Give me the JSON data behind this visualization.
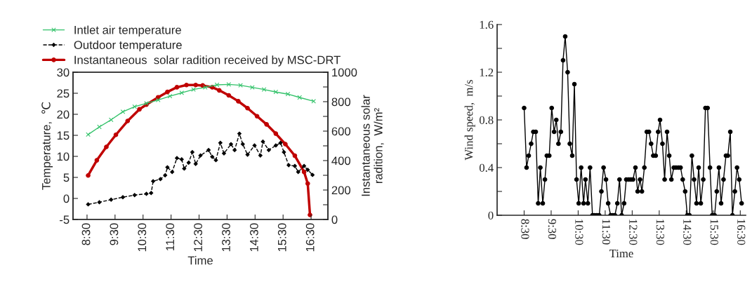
{
  "chart_data": [
    {
      "type": "line",
      "xlabel": "Time",
      "ylabel": "Temperature,  ℃",
      "y2label": "Instantaneous solar\nradition,  W/m²",
      "legend": "top left",
      "grid": false,
      "xlim": [
        8.0,
        17.1
      ],
      "xticks": [
        {
          "value": 8.5,
          "label": "8:30"
        },
        {
          "value": 9.5,
          "label": "9:30"
        },
        {
          "value": 10.5,
          "label": "10:30"
        },
        {
          "value": 11.5,
          "label": "11:30"
        },
        {
          "value": 12.5,
          "label": "12:30"
        },
        {
          "value": 13.5,
          "label": "13:30"
        },
        {
          "value": 14.5,
          "label": "14:30"
        },
        {
          "value": 15.5,
          "label": "15:30"
        },
        {
          "value": 16.5,
          "label": "16:30"
        }
      ],
      "ylim": [
        -5,
        30
      ],
      "yticks": [
        -5,
        0,
        5,
        10,
        15,
        20,
        25,
        30
      ],
      "y2lim": [
        0,
        1000
      ],
      "y2ticks": [
        0,
        {
          "value": 100,
          "label": null
        },
        200,
        {
          "value": 300,
          "label": null
        },
        400,
        {
          "value": 500,
          "label": null
        },
        600,
        {
          "value": 700,
          "label": null
        },
        800,
        {
          "value": 900,
          "label": null
        },
        1000
      ],
      "series": [
        {
          "name": "Intlet air temperature",
          "color": "#33c26a",
          "marker": "cross",
          "line_style": "solid",
          "x": [
            8.54,
            8.94,
            9.36,
            9.78,
            10.2,
            10.62,
            11.04,
            11.46,
            11.88,
            12.3,
            12.72,
            13.14,
            13.56,
            13.98,
            14.4,
            14.82,
            15.24,
            15.67,
            16.09,
            16.59
          ],
          "values": [
            15.2,
            17.0,
            18.7,
            20.6,
            21.8,
            22.6,
            23.4,
            24.3,
            25.1,
            25.9,
            26.4,
            27.0,
            27.1,
            26.9,
            26.4,
            25.9,
            25.3,
            24.8,
            24.0,
            23.1
          ]
        },
        {
          "name": "Outdoor temperature",
          "color": "#000000",
          "marker": "diamond",
          "line_style": "dashed",
          "x": [
            8.54,
            8.94,
            9.36,
            9.78,
            10.2,
            10.62,
            10.79,
            10.86,
            11.12,
            11.29,
            11.37,
            11.54,
            11.71,
            11.88,
            11.97,
            12.13,
            12.26,
            12.38,
            12.55,
            12.84,
            12.97,
            13.1,
            13.26,
            13.39,
            13.64,
            13.77,
            13.94,
            14.06,
            14.23,
            14.48,
            14.69,
            14.78,
            14.99,
            15.24,
            15.41,
            15.53,
            15.7,
            15.92,
            16.04,
            16.25,
            16.38,
            16.55
          ],
          "values": [
            -1.4,
            -0.9,
            -0.3,
            0.3,
            0.8,
            1.1,
            1.3,
            4.1,
            4.6,
            5.5,
            7.4,
            6.3,
            9.6,
            9.3,
            7.1,
            8.5,
            11.0,
            8.2,
            10.2,
            11.5,
            9.9,
            9.1,
            13.2,
            10.7,
            12.9,
            11.5,
            15.4,
            12.9,
            10.4,
            12.6,
            10.2,
            13.5,
            11.5,
            12.6,
            13.2,
            11.0,
            7.9,
            7.7,
            6.3,
            7.7,
            6.8,
            5.6
          ]
        },
        {
          "name": "Instantaneous  solar radition received by MSC-DRT",
          "color": "#c00000",
          "marker": "circle",
          "line_style": "solid",
          "axis": "y2",
          "x": [
            8.54,
            8.85,
            9.19,
            9.53,
            9.95,
            10.37,
            10.62,
            11.04,
            11.37,
            11.71,
            12.05,
            12.38,
            12.63,
            12.97,
            13.22,
            13.56,
            13.9,
            14.23,
            14.57,
            14.91,
            15.24,
            15.58,
            15.92,
            16.25,
            16.38,
            16.46
          ],
          "values": [
            299,
            402,
            493,
            575,
            669,
            748,
            780,
            830,
            866,
            898,
            913,
            913,
            910,
            898,
            877,
            843,
            803,
            756,
            701,
            646,
            583,
            512,
            433,
            323,
            244,
            31
          ]
        }
      ]
    },
    {
      "type": "line",
      "xlabel": "Time",
      "ylabel": "Wind speed,  m/s",
      "grid": false,
      "xlim": [
        7.5,
        16.7
      ],
      "xticks": [
        {
          "value": 8.5,
          "label": "8:30"
        },
        {
          "value": 9.5,
          "label": "9:30"
        },
        {
          "value": 10.5,
          "label": "10:30"
        },
        {
          "value": 11.5,
          "label": "11:30"
        },
        {
          "value": 12.5,
          "label": "12:30"
        },
        {
          "value": 13.5,
          "label": "13:30"
        },
        {
          "value": 14.5,
          "label": "14:30"
        },
        {
          "value": 15.5,
          "label": "15:30"
        },
        {
          "value": 16.5,
          "label": "16:30"
        }
      ],
      "ylim": [
        0,
        1.6
      ],
      "yticks": [
        0,
        {
          "value": 0.2,
          "label": null
        },
        0.4,
        {
          "value": 0.6,
          "label": null
        },
        0.8,
        {
          "value": 1.0,
          "label": null
        },
        1.2,
        {
          "value": 1.4,
          "label": null
        },
        1.6
      ],
      "series": [
        {
          "color": "#000000",
          "marker": "circle",
          "line_style": "solid",
          "x": [
            8.5,
            8.59,
            8.67,
            8.76,
            8.84,
            8.93,
            9.02,
            9.1,
            9.19,
            9.27,
            9.34,
            9.43,
            9.52,
            9.61,
            9.69,
            9.77,
            9.86,
            9.94,
            10.02,
            10.11,
            10.19,
            10.28,
            10.36,
            10.44,
            10.52,
            10.61,
            10.7,
            10.77,
            10.86,
            10.94,
            11.03,
            11.1,
            11.19,
            11.28,
            11.36,
            11.44,
            11.53,
            11.61,
            11.7,
            11.78,
            11.86,
            11.95,
            12.03,
            12.11,
            12.2,
            12.28,
            12.37,
            12.45,
            12.53,
            12.62,
            12.7,
            12.79,
            12.86,
            12.95,
            13.04,
            13.12,
            13.2,
            13.28,
            13.37,
            13.46,
            13.53,
            13.62,
            13.7,
            13.79,
            13.87,
            13.95,
            14.04,
            14.12,
            14.21,
            14.29,
            14.37,
            14.46,
            14.54,
            14.62,
            14.71,
            14.79,
            14.88,
            14.96,
            15.04,
            15.13,
            15.21,
            15.29,
            15.38,
            15.46,
            15.55,
            15.63,
            15.71,
            15.79,
            15.88,
            15.97,
            16.04,
            16.13,
            16.21,
            16.3,
            16.38,
            16.46,
            16.55
          ],
          "values": [
            0.9,
            0.4,
            0.5,
            0.6,
            0.7,
            0.7,
            0.1,
            0.4,
            0.1,
            0.3,
            0.5,
            0.5,
            0.9,
            0.7,
            0.8,
            0.6,
            0.7,
            1.3,
            1.5,
            1.2,
            0.6,
            0.5,
            1.1,
            0.3,
            0.1,
            0.4,
            0.1,
            0.3,
            0.1,
            0.4,
            0,
            0,
            0,
            0,
            0.2,
            0.4,
            0.3,
            0.1,
            0,
            0,
            0,
            0.1,
            0.3,
            0,
            0.1,
            0.3,
            0.3,
            0.3,
            0.3,
            0.4,
            0.2,
            0.3,
            0.2,
            0.4,
            0.7,
            0.7,
            0.6,
            0.5,
            0.5,
            0.7,
            0.8,
            0.6,
            0.3,
            0.7,
            0.5,
            0.3,
            0.4,
            0.4,
            0.4,
            0.4,
            0.3,
            0.2,
            0,
            0,
            0.5,
            0.3,
            0.1,
            0.4,
            0.1,
            0.3,
            0.9,
            0.9,
            0.4,
            0,
            0,
            0.2,
            0.4,
            0.1,
            0.3,
            0.5,
            0.5,
            0.7,
            0,
            0.2,
            0.4,
            0.3,
            0.1
          ]
        }
      ]
    }
  ]
}
